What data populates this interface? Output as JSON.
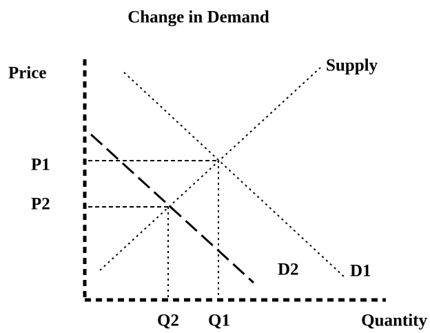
{
  "title": "Change in Demand",
  "axes": {
    "y_label": "Price",
    "x_label": "Quantity"
  },
  "curves": {
    "supply": "Supply",
    "demand1": "D1",
    "demand2": "D2"
  },
  "prices": [
    "P1",
    "P2"
  ],
  "quantities": [
    "Q2",
    "Q1"
  ]
}
